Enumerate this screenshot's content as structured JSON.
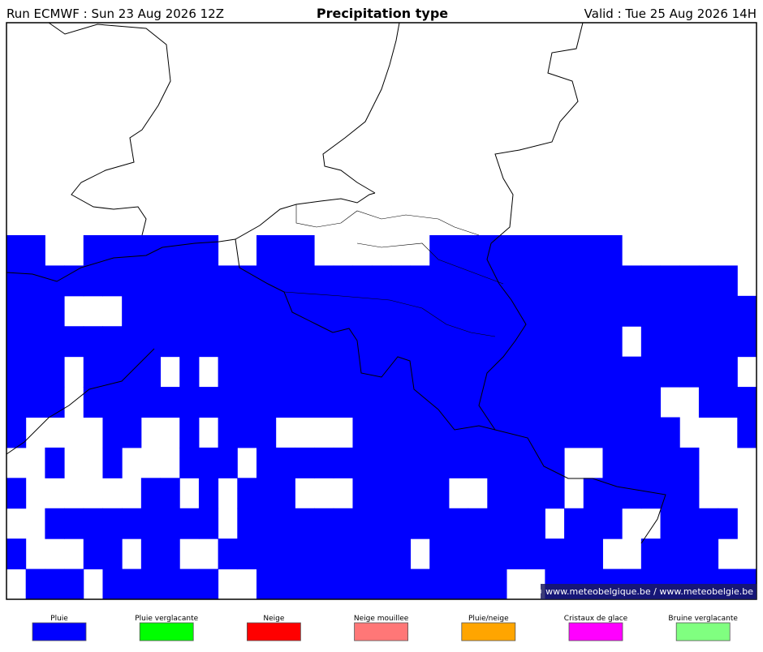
{
  "header": {
    "run": "Run ECMWF : Sun 23 Aug 2026 12Z",
    "title": "Precipitation type",
    "valid": "Valid : Tue 25 Aug 2026 14H"
  },
  "credit": "© www.meteobelgique.be / www.meteobelgie.be",
  "legend": {
    "items": [
      {
        "label": "Pluie",
        "color": "#0000ff"
      },
      {
        "label": "Pluie verglacante",
        "color": "#00ff00"
      },
      {
        "label": "Neige",
        "color": "#ff0000"
      },
      {
        "label": "Neige mouillee",
        "color": "#ff7777"
      },
      {
        "label": "Pluie/neige",
        "color": "#ffa500"
      },
      {
        "label": "Cristaux de glace",
        "color": "#ff00ff"
      },
      {
        "label": "Bruine verglacante",
        "color": "#80ff80"
      }
    ]
  }
}
